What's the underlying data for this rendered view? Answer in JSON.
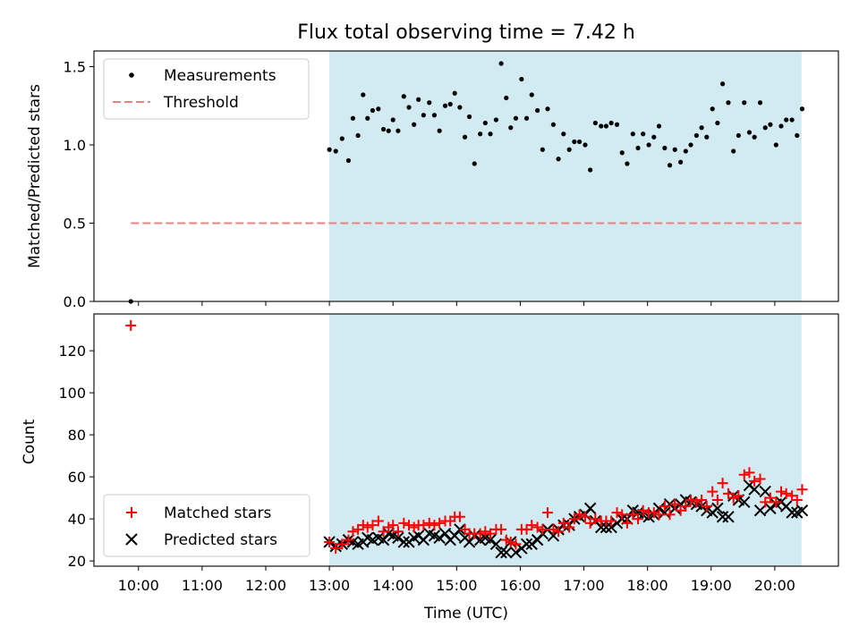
{
  "chart_data": {
    "type": "scatter",
    "title": "Flux total observing time = 7.42 h",
    "xlabel": "Time (UTC)",
    "x_tick_labels": [
      "10:00",
      "11:00",
      "12:00",
      "13:00",
      "14:00",
      "15:00",
      "16:00",
      "17:00",
      "18:00",
      "19:00",
      "20:00"
    ],
    "x_tick_hours": [
      10,
      11,
      12,
      13,
      14,
      15,
      16,
      17,
      18,
      19,
      20
    ],
    "xlim_hours": [
      9.3,
      21.0
    ],
    "shaded_region_hours": [
      13.0,
      20.42
    ],
    "shade_color": "#add8e6",
    "top_panel": {
      "ylabel": "Matched/Predicted stars",
      "ylim": [
        0,
        1.6
      ],
      "y_ticks": [
        0.0,
        0.5,
        1.0,
        1.5
      ],
      "y_tick_labels": [
        "0.0",
        "0.5",
        "1.0",
        "1.5"
      ],
      "legend": [
        "Measurements",
        "Threshold"
      ],
      "threshold": {
        "name": "Threshold",
        "value": 0.5,
        "x_range_hours": [
          9.88,
          20.42
        ],
        "color": "#f08080"
      },
      "measurements": {
        "name": "Measurements",
        "color": "#000000",
        "points": [
          [
            9.88,
            0.0
          ],
          [
            13.0,
            0.97
          ],
          [
            13.1,
            0.96
          ],
          [
            13.2,
            1.04
          ],
          [
            13.3,
            0.9
          ],
          [
            13.37,
            1.17
          ],
          [
            13.45,
            1.06
          ],
          [
            13.53,
            1.32
          ],
          [
            13.6,
            1.17
          ],
          [
            13.68,
            1.22
          ],
          [
            13.77,
            1.23
          ],
          [
            13.85,
            1.1
          ],
          [
            13.93,
            1.09
          ],
          [
            14.0,
            1.16
          ],
          [
            14.08,
            1.09
          ],
          [
            14.17,
            1.31
          ],
          [
            14.25,
            1.24
          ],
          [
            14.33,
            1.13
          ],
          [
            14.4,
            1.29
          ],
          [
            14.48,
            1.19
          ],
          [
            14.57,
            1.27
          ],
          [
            14.65,
            1.19
          ],
          [
            14.73,
            1.09
          ],
          [
            14.82,
            1.25
          ],
          [
            14.9,
            1.26
          ],
          [
            14.97,
            1.33
          ],
          [
            15.05,
            1.24
          ],
          [
            15.13,
            1.05
          ],
          [
            15.2,
            1.18
          ],
          [
            15.28,
            0.88
          ],
          [
            15.37,
            1.07
          ],
          [
            15.45,
            1.14
          ],
          [
            15.53,
            1.07
          ],
          [
            15.62,
            1.16
          ],
          [
            15.7,
            1.52
          ],
          [
            15.78,
            1.3
          ],
          [
            15.85,
            1.11
          ],
          [
            15.93,
            1.17
          ],
          [
            16.02,
            1.42
          ],
          [
            16.1,
            1.17
          ],
          [
            16.18,
            1.32
          ],
          [
            16.27,
            1.22
          ],
          [
            16.35,
            0.97
          ],
          [
            16.43,
            1.23
          ],
          [
            16.52,
            1.13
          ],
          [
            16.6,
            0.91
          ],
          [
            16.68,
            1.07
          ],
          [
            16.77,
            0.97
          ],
          [
            16.85,
            1.02
          ],
          [
            16.93,
            1.02
          ],
          [
            17.02,
            1.0
          ],
          [
            17.1,
            0.84
          ],
          [
            17.18,
            1.14
          ],
          [
            17.27,
            1.12
          ],
          [
            17.35,
            1.12
          ],
          [
            17.43,
            1.14
          ],
          [
            17.52,
            1.13
          ],
          [
            17.6,
            0.95
          ],
          [
            17.68,
            0.88
          ],
          [
            17.77,
            1.07
          ],
          [
            17.85,
            0.98
          ],
          [
            17.93,
            1.07
          ],
          [
            18.02,
            1.0
          ],
          [
            18.1,
            1.05
          ],
          [
            18.18,
            1.12
          ],
          [
            18.27,
            0.98
          ],
          [
            18.35,
            0.87
          ],
          [
            18.43,
            0.97
          ],
          [
            18.52,
            0.89
          ],
          [
            18.6,
            0.96
          ],
          [
            18.68,
            1.0
          ],
          [
            18.77,
            1.06
          ],
          [
            18.85,
            1.11
          ],
          [
            18.93,
            1.05
          ],
          [
            19.02,
            1.23
          ],
          [
            19.1,
            1.14
          ],
          [
            19.18,
            1.39
          ],
          [
            19.27,
            1.27
          ],
          [
            19.35,
            0.96
          ],
          [
            19.43,
            1.06
          ],
          [
            19.52,
            1.27
          ],
          [
            19.6,
            1.08
          ],
          [
            19.68,
            1.05
          ],
          [
            19.77,
            1.27
          ],
          [
            19.85,
            1.11
          ],
          [
            19.93,
            1.13
          ],
          [
            20.02,
            1.0
          ],
          [
            20.1,
            1.12
          ],
          [
            20.18,
            1.16
          ],
          [
            20.27,
            1.16
          ],
          [
            20.35,
            1.06
          ],
          [
            20.43,
            1.23
          ]
        ]
      }
    },
    "bottom_panel": {
      "ylabel": "Count",
      "ylim": [
        17.5,
        137.5
      ],
      "y_ticks": [
        20,
        40,
        60,
        80,
        100,
        120
      ],
      "y_tick_labels": [
        "20",
        "40",
        "60",
        "80",
        "100",
        "120"
      ],
      "legend": [
        "Matched stars",
        "Predicted stars"
      ],
      "series": [
        {
          "name": "Matched stars",
          "marker": "+",
          "color": "#ff0000",
          "points": [
            [
              9.88,
              132
            ],
            [
              13.0,
              29
            ],
            [
              13.1,
              26
            ],
            [
              13.2,
              28
            ],
            [
              13.3,
              30
            ],
            [
              13.37,
              34
            ],
            [
              13.45,
              35
            ],
            [
              13.53,
              37
            ],
            [
              13.6,
              36
            ],
            [
              13.68,
              37
            ],
            [
              13.77,
              39
            ],
            [
              13.85,
              34
            ],
            [
              13.93,
              36
            ],
            [
              14.0,
              37
            ],
            [
              14.08,
              34
            ],
            [
              14.17,
              38
            ],
            [
              14.25,
              37
            ],
            [
              14.33,
              36
            ],
            [
              14.4,
              37
            ],
            [
              14.48,
              37
            ],
            [
              14.57,
              38
            ],
            [
              14.65,
              37
            ],
            [
              14.73,
              38
            ],
            [
              14.82,
              39
            ],
            [
              14.9,
              39
            ],
            [
              14.97,
              41
            ],
            [
              15.05,
              41
            ],
            [
              15.13,
              35
            ],
            [
              15.2,
              33
            ],
            [
              15.28,
              33
            ],
            [
              15.37,
              33
            ],
            [
              15.45,
              34
            ],
            [
              15.53,
              33
            ],
            [
              15.62,
              35
            ],
            [
              15.7,
              35
            ],
            [
              15.78,
              30
            ],
            [
              15.85,
              29
            ],
            [
              15.93,
              28
            ],
            [
              16.02,
              35
            ],
            [
              16.1,
              35
            ],
            [
              16.18,
              37
            ],
            [
              16.27,
              36
            ],
            [
              16.35,
              35
            ],
            [
              16.43,
              43
            ],
            [
              16.52,
              35
            ],
            [
              16.6,
              34
            ],
            [
              16.68,
              38
            ],
            [
              16.77,
              36
            ],
            [
              16.85,
              40
            ],
            [
              16.93,
              42
            ],
            [
              17.02,
              41
            ],
            [
              17.1,
              38
            ],
            [
              17.18,
              40
            ],
            [
              17.27,
              39
            ],
            [
              17.35,
              39
            ],
            [
              17.43,
              39
            ],
            [
              17.52,
              43
            ],
            [
              17.6,
              42
            ],
            [
              17.68,
              38
            ],
            [
              17.77,
              42
            ],
            [
              17.85,
              40
            ],
            [
              17.93,
              44
            ],
            [
              18.02,
              43
            ],
            [
              18.1,
              43
            ],
            [
              18.18,
              42
            ],
            [
              18.27,
              46
            ],
            [
              18.35,
              42
            ],
            [
              18.43,
              47
            ],
            [
              18.52,
              44
            ],
            [
              18.6,
              46
            ],
            [
              18.68,
              49
            ],
            [
              18.77,
              48
            ],
            [
              18.85,
              49
            ],
            [
              18.93,
              46
            ],
            [
              19.02,
              53
            ],
            [
              19.1,
              49
            ],
            [
              19.18,
              57
            ],
            [
              19.27,
              52
            ],
            [
              19.35,
              50
            ],
            [
              19.43,
              51
            ],
            [
              19.52,
              61
            ],
            [
              19.6,
              62
            ],
            [
              19.68,
              58
            ],
            [
              19.77,
              59
            ],
            [
              19.85,
              48
            ],
            [
              19.93,
              50
            ],
            [
              20.02,
              48
            ],
            [
              20.1,
              53
            ],
            [
              20.18,
              52
            ],
            [
              20.27,
              51
            ],
            [
              20.35,
              49
            ],
            [
              20.43,
              54
            ]
          ]
        },
        {
          "name": "Predicted stars",
          "marker": "x",
          "color": "#000000",
          "points": [
            [
              13.0,
              29
            ],
            [
              13.1,
              27
            ],
            [
              13.2,
              28
            ],
            [
              13.3,
              30
            ],
            [
              13.37,
              29
            ],
            [
              13.45,
              28
            ],
            [
              13.53,
              29
            ],
            [
              13.6,
              31
            ],
            [
              13.68,
              30
            ],
            [
              13.77,
              31
            ],
            [
              13.85,
              30
            ],
            [
              13.93,
              33
            ],
            [
              14.0,
              32
            ],
            [
              14.08,
              31
            ],
            [
              14.17,
              29
            ],
            [
              14.25,
              29
            ],
            [
              14.33,
              31
            ],
            [
              14.4,
              32
            ],
            [
              14.48,
              30
            ],
            [
              14.57,
              33
            ],
            [
              14.65,
              32
            ],
            [
              14.73,
              31
            ],
            [
              14.82,
              33
            ],
            [
              14.9,
              30
            ],
            [
              14.97,
              32
            ],
            [
              15.05,
              35
            ],
            [
              15.13,
              31
            ],
            [
              15.2,
              29
            ],
            [
              15.28,
              32
            ],
            [
              15.37,
              30
            ],
            [
              15.45,
              31
            ],
            [
              15.53,
              30
            ],
            [
              15.62,
              28
            ],
            [
              15.7,
              24
            ],
            [
              15.78,
              24
            ],
            [
              15.85,
              29
            ],
            [
              15.93,
              24
            ],
            [
              16.02,
              26
            ],
            [
              16.1,
              28
            ],
            [
              16.18,
              28
            ],
            [
              16.27,
              30
            ],
            [
              16.35,
              33
            ],
            [
              16.43,
              35
            ],
            [
              16.52,
              32
            ],
            [
              16.6,
              35
            ],
            [
              16.68,
              37
            ],
            [
              16.77,
              37
            ],
            [
              16.85,
              40
            ],
            [
              16.93,
              41
            ],
            [
              17.02,
              42
            ],
            [
              17.1,
              45
            ],
            [
              17.18,
              39
            ],
            [
              17.27,
              36
            ],
            [
              17.35,
              36
            ],
            [
              17.43,
              36
            ],
            [
              17.52,
              38
            ],
            [
              17.6,
              40
            ],
            [
              17.68,
              40
            ],
            [
              17.77,
              44
            ],
            [
              17.85,
              43
            ],
            [
              17.93,
              42
            ],
            [
              18.02,
              41
            ],
            [
              18.1,
              42
            ],
            [
              18.18,
              45
            ],
            [
              18.27,
              43
            ],
            [
              18.35,
              47
            ],
            [
              18.43,
              45
            ],
            [
              18.52,
              47
            ],
            [
              18.6,
              49
            ],
            [
              18.68,
              48
            ],
            [
              18.77,
              47
            ],
            [
              18.85,
              46
            ],
            [
              18.93,
              44
            ],
            [
              19.02,
              43
            ],
            [
              19.1,
              45
            ],
            [
              19.18,
              41
            ],
            [
              19.27,
              41
            ],
            [
              19.35,
              51
            ],
            [
              19.43,
              49
            ],
            [
              19.52,
              48
            ],
            [
              19.6,
              56
            ],
            [
              19.68,
              54
            ],
            [
              19.77,
              44
            ],
            [
              19.85,
              53
            ],
            [
              19.93,
              45
            ],
            [
              20.02,
              47
            ],
            [
              20.1,
              48
            ],
            [
              20.18,
              46
            ],
            [
              20.27,
              43
            ],
            [
              20.35,
              43
            ],
            [
              20.43,
              44
            ]
          ]
        }
      ]
    }
  }
}
